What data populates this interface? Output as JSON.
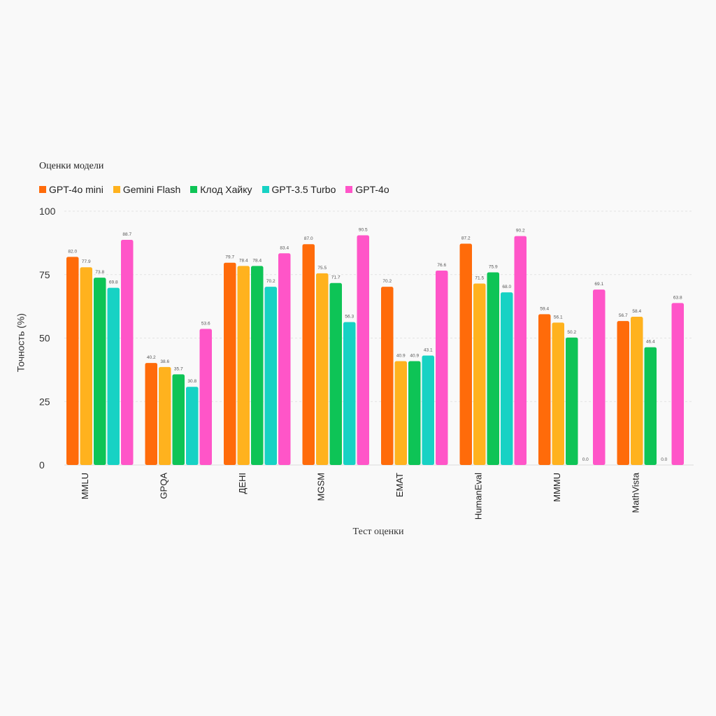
{
  "chart_data": {
    "type": "bar",
    "legend_title": "Оценки модели",
    "legend_placement": "top-left",
    "xlabel": "Тест оценки",
    "ylabel": "Точность (%)",
    "ylim": [
      0,
      100
    ],
    "yticks": [
      0,
      25,
      50,
      75,
      100
    ],
    "grid": true,
    "categories": [
      "MMLU",
      "GPQA",
      "ДЕНI",
      "MGSM",
      "EMAT",
      "HumanEval",
      "MMMU",
      "MathVista"
    ],
    "series": [
      {
        "name": "GPT-4o mini",
        "color": "#ff6b0a",
        "values": [
          82.0,
          40.2,
          79.7,
          87.0,
          70.2,
          87.2,
          59.4,
          56.7
        ],
        "labels": [
          "82.0",
          "40.2",
          "79.7",
          "87.0",
          "70.2",
          "87.2",
          "59.4",
          "56.7"
        ]
      },
      {
        "name": "Gemini Flash",
        "color": "#ffb21e",
        "values": [
          77.9,
          38.6,
          78.4,
          75.5,
          40.9,
          71.5,
          56.1,
          58.4
        ],
        "labels": [
          "77.9",
          "38.6",
          "78.4",
          "75.5",
          "40.9",
          "71.5",
          "56.1",
          "58.4"
        ]
      },
      {
        "name": "Клод Хайку",
        "color": "#0ec456",
        "values": [
          73.8,
          35.7,
          78.4,
          71.7,
          40.9,
          75.9,
          50.2,
          46.4
        ],
        "labels": [
          "73.8",
          "35.7",
          "78.4",
          "71.7",
          "40.9",
          "75.9",
          "50.2",
          "46.4"
        ]
      },
      {
        "name": "GPT-3.5 Turbo",
        "color": "#17d2c4",
        "values": [
          69.8,
          30.8,
          70.2,
          56.3,
          43.1,
          68.0,
          0.0,
          0.0
        ],
        "labels": [
          "69.8",
          "30.8",
          "70.2",
          "56.3",
          "43.1",
          "68.0",
          "0.0",
          "0.0"
        ]
      },
      {
        "name": "GPT-4o",
        "color": "#ff55c8",
        "values": [
          88.7,
          53.6,
          83.4,
          90.5,
          76.6,
          90.2,
          69.1,
          63.8
        ],
        "labels": [
          "88.7",
          "53.6",
          "83.4",
          "90.5",
          "76.6",
          "90.2",
          "69.1",
          "63.8"
        ]
      }
    ]
  }
}
